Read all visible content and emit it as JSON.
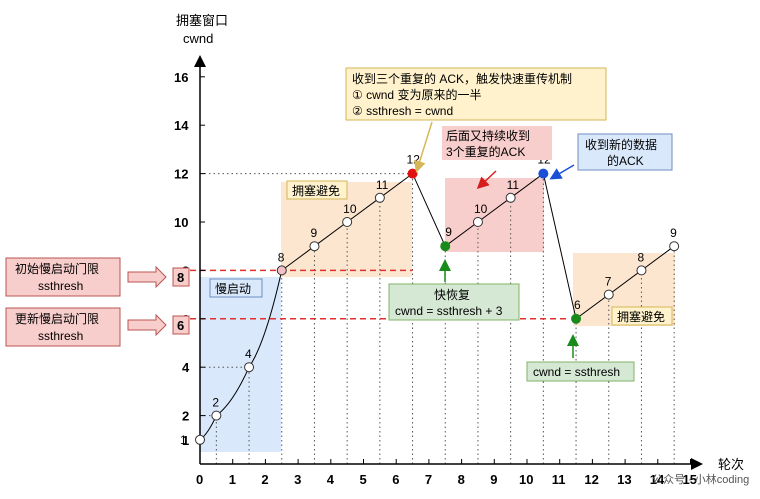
{
  "chart_data": {
    "type": "line",
    "ylabel": [
      "拥塞窗口",
      "cwnd"
    ],
    "xlabel": "轮次",
    "xlim": [
      0,
      15
    ],
    "ylim": [
      0,
      16
    ],
    "x_ticks": [
      0,
      1,
      2,
      3,
      4,
      5,
      6,
      7,
      8,
      9,
      10,
      11,
      12,
      13,
      14,
      15
    ],
    "y_ticks": [
      1,
      2,
      4,
      6,
      8,
      10,
      12,
      14,
      16
    ],
    "series": [
      {
        "points": [
          {
            "x": 0,
            "y": 1,
            "label": "1"
          },
          {
            "x": 0.5,
            "y": 2,
            "label": "2"
          },
          {
            "x": 1.5,
            "y": 4,
            "label": "4"
          },
          {
            "x": 2.5,
            "y": 8,
            "label": "8"
          },
          {
            "x": 3.5,
            "y": 9,
            "label": "9"
          },
          {
            "x": 4.5,
            "y": 10,
            "label": "10"
          },
          {
            "x": 5.5,
            "y": 11,
            "label": "11"
          },
          {
            "x": 6.5,
            "y": 12,
            "label": "12"
          },
          {
            "x": 7.5,
            "y": 9,
            "label": "9"
          },
          {
            "x": 8.5,
            "y": 10,
            "label": "10"
          },
          {
            "x": 9.5,
            "y": 11,
            "label": "11"
          },
          {
            "x": 10.5,
            "y": 12,
            "label": "12"
          },
          {
            "x": 11.5,
            "y": 6,
            "label": "6"
          },
          {
            "x": 12.5,
            "y": 7,
            "label": "7"
          },
          {
            "x": 13.5,
            "y": 8,
            "label": "8"
          },
          {
            "x": 14.5,
            "y": 9,
            "label": "9"
          }
        ]
      }
    ],
    "regions": {
      "slow_start": "慢启动",
      "congestion_avoidance_1": "拥塞避免",
      "congestion_avoidance_2": "拥塞避免"
    },
    "thresholds": [
      {
        "value": 8,
        "label_lines": [
          "初始慢启动门限",
          "ssthresh"
        ],
        "box": "8"
      },
      {
        "value": 6,
        "label_lines": [
          "更新慢启动门限",
          "ssthresh"
        ],
        "box": "6"
      }
    ],
    "annotations": {
      "triple_ack": [
        "收到三个重复的 ACK，触发快速重传机制",
        "① cwnd 变为原来的一半",
        "② ssthresh = cwnd"
      ],
      "again_triple_ack": [
        "后面又持续收到",
        "3个重复的ACK"
      ],
      "new_ack": [
        "收到新的数据",
        "的ACK"
      ],
      "fast_recovery": [
        "快恢复",
        "cwnd = ssthresh + 3"
      ],
      "reset": [
        "cwnd = ssthresh"
      ]
    },
    "watermark": "公众号 · 小林coding",
    "colors": {
      "slow_start_bg": "#dae8fc",
      "avoid_bg": "#fce6d0",
      "fast_bg": "#f8cecc",
      "note_yellow": "#fff2cc",
      "note_green": "#d5e8d4",
      "note_blue": "#dae8fc",
      "threshold_red": "#e0312f",
      "point_red": "#e01010",
      "point_green": "#1a8a1a",
      "point_blue": "#1a4fd6",
      "point_pink": "#f4c0c8"
    }
  }
}
